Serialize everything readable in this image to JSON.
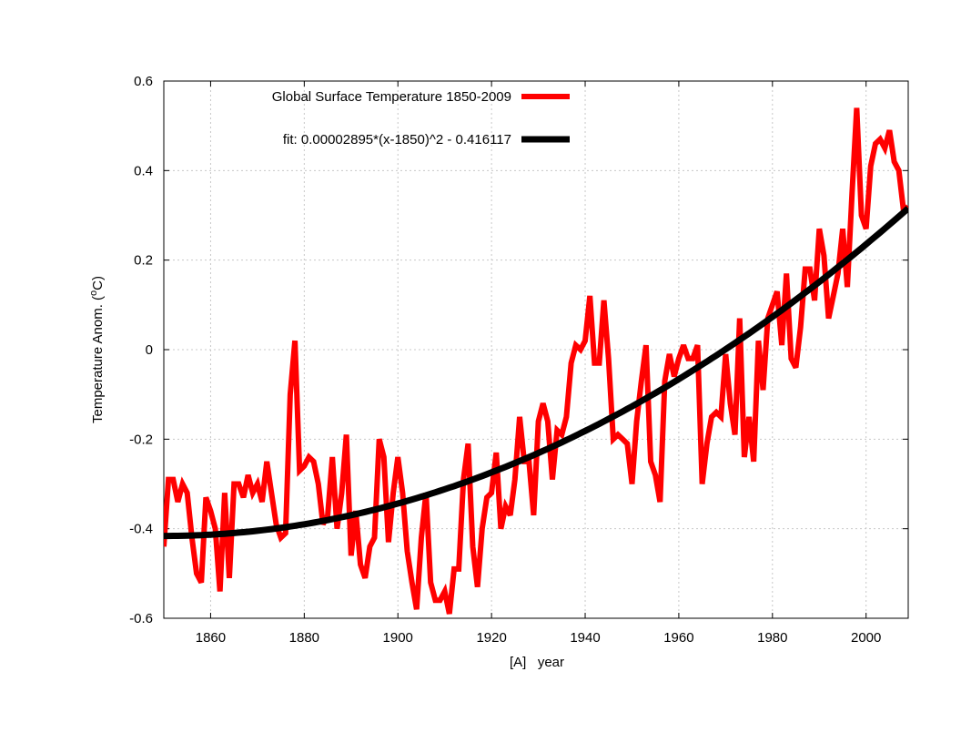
{
  "chart_data": {
    "type": "line",
    "title": "",
    "xlabel": "[A]   year",
    "ylabel_main": "Temperature Anom. (",
    "ylabel_sup": "o",
    "ylabel_unit": "C)",
    "xlim": [
      1850,
      2009
    ],
    "ylim": [
      -0.6,
      0.6
    ],
    "x_ticks": [
      1860,
      1880,
      1900,
      1920,
      1940,
      1960,
      1980,
      2000
    ],
    "y_ticks": [
      -0.6,
      -0.4,
      -0.2,
      0,
      0.2,
      0.4,
      0.6
    ],
    "y_tick_labels": [
      "-0.6",
      "-0.4",
      "-0.2",
      "0",
      "0.2",
      "0.4",
      "0.6"
    ],
    "grid": true,
    "legend_position": "top-left",
    "series": [
      {
        "name": "Global Surface Temperature 1850-2009",
        "color": "#ff0000",
        "x": [
          1850,
          1851,
          1852,
          1853,
          1854,
          1855,
          1856,
          1857,
          1858,
          1859,
          1860,
          1861,
          1862,
          1863,
          1864,
          1865,
          1866,
          1867,
          1868,
          1869,
          1870,
          1871,
          1872,
          1873,
          1874,
          1875,
          1876,
          1877,
          1878,
          1879,
          1880,
          1881,
          1882,
          1883,
          1884,
          1885,
          1886,
          1887,
          1888,
          1889,
          1890,
          1891,
          1892,
          1893,
          1894,
          1895,
          1896,
          1897,
          1898,
          1899,
          1900,
          1901,
          1902,
          1903,
          1904,
          1905,
          1906,
          1907,
          1908,
          1909,
          1910,
          1911,
          1912,
          1913,
          1914,
          1915,
          1916,
          1917,
          1918,
          1919,
          1920,
          1921,
          1922,
          1923,
          1924,
          1925,
          1926,
          1927,
          1928,
          1929,
          1930,
          1931,
          1932,
          1933,
          1934,
          1935,
          1936,
          1937,
          1938,
          1939,
          1940,
          1941,
          1942,
          1943,
          1944,
          1945,
          1946,
          1947,
          1948,
          1949,
          1950,
          1951,
          1952,
          1953,
          1954,
          1955,
          1956,
          1957,
          1958,
          1959,
          1960,
          1961,
          1962,
          1963,
          1964,
          1965,
          1966,
          1967,
          1968,
          1969,
          1970,
          1971,
          1972,
          1973,
          1974,
          1975,
          1976,
          1977,
          1978,
          1979,
          1980,
          1981,
          1982,
          1983,
          1984,
          1985,
          1986,
          1987,
          1988,
          1989,
          1990,
          1991,
          1992,
          1993,
          1994,
          1995,
          1996,
          1997,
          1998,
          1999,
          2000,
          2001,
          2002,
          2003,
          2004,
          2005,
          2006,
          2007,
          2008,
          2009
        ],
        "y": [
          -0.44,
          -0.29,
          -0.29,
          -0.34,
          -0.3,
          -0.32,
          -0.42,
          -0.5,
          -0.52,
          -0.33,
          -0.36,
          -0.4,
          -0.54,
          -0.32,
          -0.51,
          -0.3,
          -0.3,
          -0.33,
          -0.28,
          -0.32,
          -0.3,
          -0.34,
          -0.25,
          -0.32,
          -0.39,
          -0.42,
          -0.41,
          -0.1,
          0.02,
          -0.27,
          -0.26,
          -0.24,
          -0.25,
          -0.3,
          -0.39,
          -0.37,
          -0.24,
          -0.4,
          -0.32,
          -0.19,
          -0.46,
          -0.36,
          -0.48,
          -0.51,
          -0.44,
          -0.42,
          -0.2,
          -0.24,
          -0.43,
          -0.32,
          -0.24,
          -0.32,
          -0.45,
          -0.52,
          -0.58,
          -0.42,
          -0.32,
          -0.52,
          -0.56,
          -0.56,
          -0.54,
          -0.59,
          -0.49,
          -0.49,
          -0.29,
          -0.21,
          -0.44,
          -0.53,
          -0.4,
          -0.33,
          -0.32,
          -0.23,
          -0.4,
          -0.35,
          -0.37,
          -0.29,
          -0.15,
          -0.25,
          -0.25,
          -0.37,
          -0.16,
          -0.12,
          -0.16,
          -0.29,
          -0.18,
          -0.19,
          -0.15,
          -0.03,
          0.01,
          0.0,
          0.02,
          0.12,
          -0.03,
          -0.03,
          0.11,
          -0.02,
          -0.2,
          -0.19,
          -0.2,
          -0.21,
          -0.3,
          -0.16,
          -0.07,
          0.01,
          -0.25,
          -0.28,
          -0.34,
          -0.07,
          -0.01,
          -0.06,
          -0.02,
          0.01,
          -0.02,
          -0.02,
          0.01,
          -0.3,
          -0.21,
          -0.15,
          -0.14,
          -0.15,
          -0.01,
          -0.12,
          -0.19,
          0.07,
          -0.24,
          -0.15,
          -0.25,
          0.02,
          -0.09,
          0.07,
          0.1,
          0.13,
          0.01,
          0.17,
          -0.02,
          -0.04,
          0.05,
          0.18,
          0.18,
          0.11,
          0.27,
          0.21,
          0.07,
          0.12,
          0.17,
          0.27,
          0.14,
          0.35,
          0.54,
          0.3,
          0.27,
          0.41,
          0.46,
          0.47,
          0.45,
          0.49,
          0.42,
          0.4,
          0.31,
          0.32
        ]
      },
      {
        "name": "fit:  0.00002895*(x-1850)^2 - 0.416117",
        "color": "#000000",
        "formula": {
          "a": 2.895e-05,
          "x0": 1850,
          "c": -0.416117
        }
      }
    ]
  }
}
